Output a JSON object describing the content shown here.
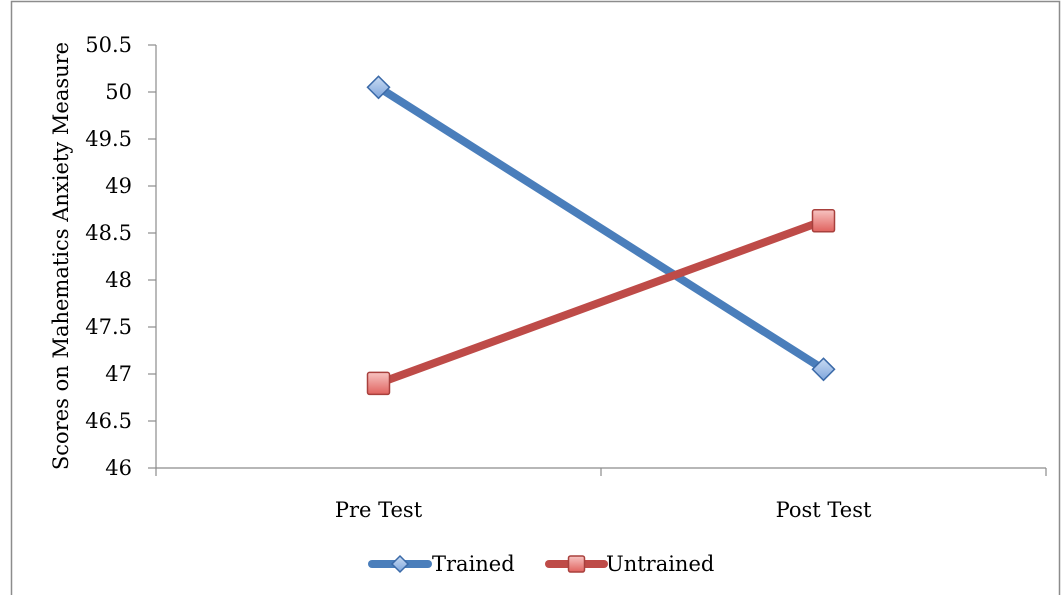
{
  "chart_data": {
    "type": "line",
    "title": "",
    "xlabel": "",
    "ylabel": "Scores on Mahematics Anxiety Measure",
    "categories": [
      "Pre Test",
      "Post Test"
    ],
    "ylim": [
      46,
      50.5
    ],
    "yticks": [
      46,
      46.5,
      47,
      47.5,
      48,
      48.5,
      49,
      49.5,
      50,
      50.5
    ],
    "ytick_labels": [
      "46",
      "46.5",
      "47",
      "47.5",
      "48",
      "48.5",
      "49",
      "49.5",
      "50",
      "50.5"
    ],
    "grid": false,
    "legend_position": "bottom",
    "series": [
      {
        "name": "Trained",
        "values": [
          50.05,
          47.05
        ],
        "color": "#4a7ebb",
        "marker": "diamond",
        "marker_fill": "#a9c4ea"
      },
      {
        "name": "Untrained",
        "values": [
          46.9,
          48.63
        ],
        "color": "#be4b48",
        "marker": "square",
        "marker_fill": "#f0a8a6"
      }
    ]
  }
}
